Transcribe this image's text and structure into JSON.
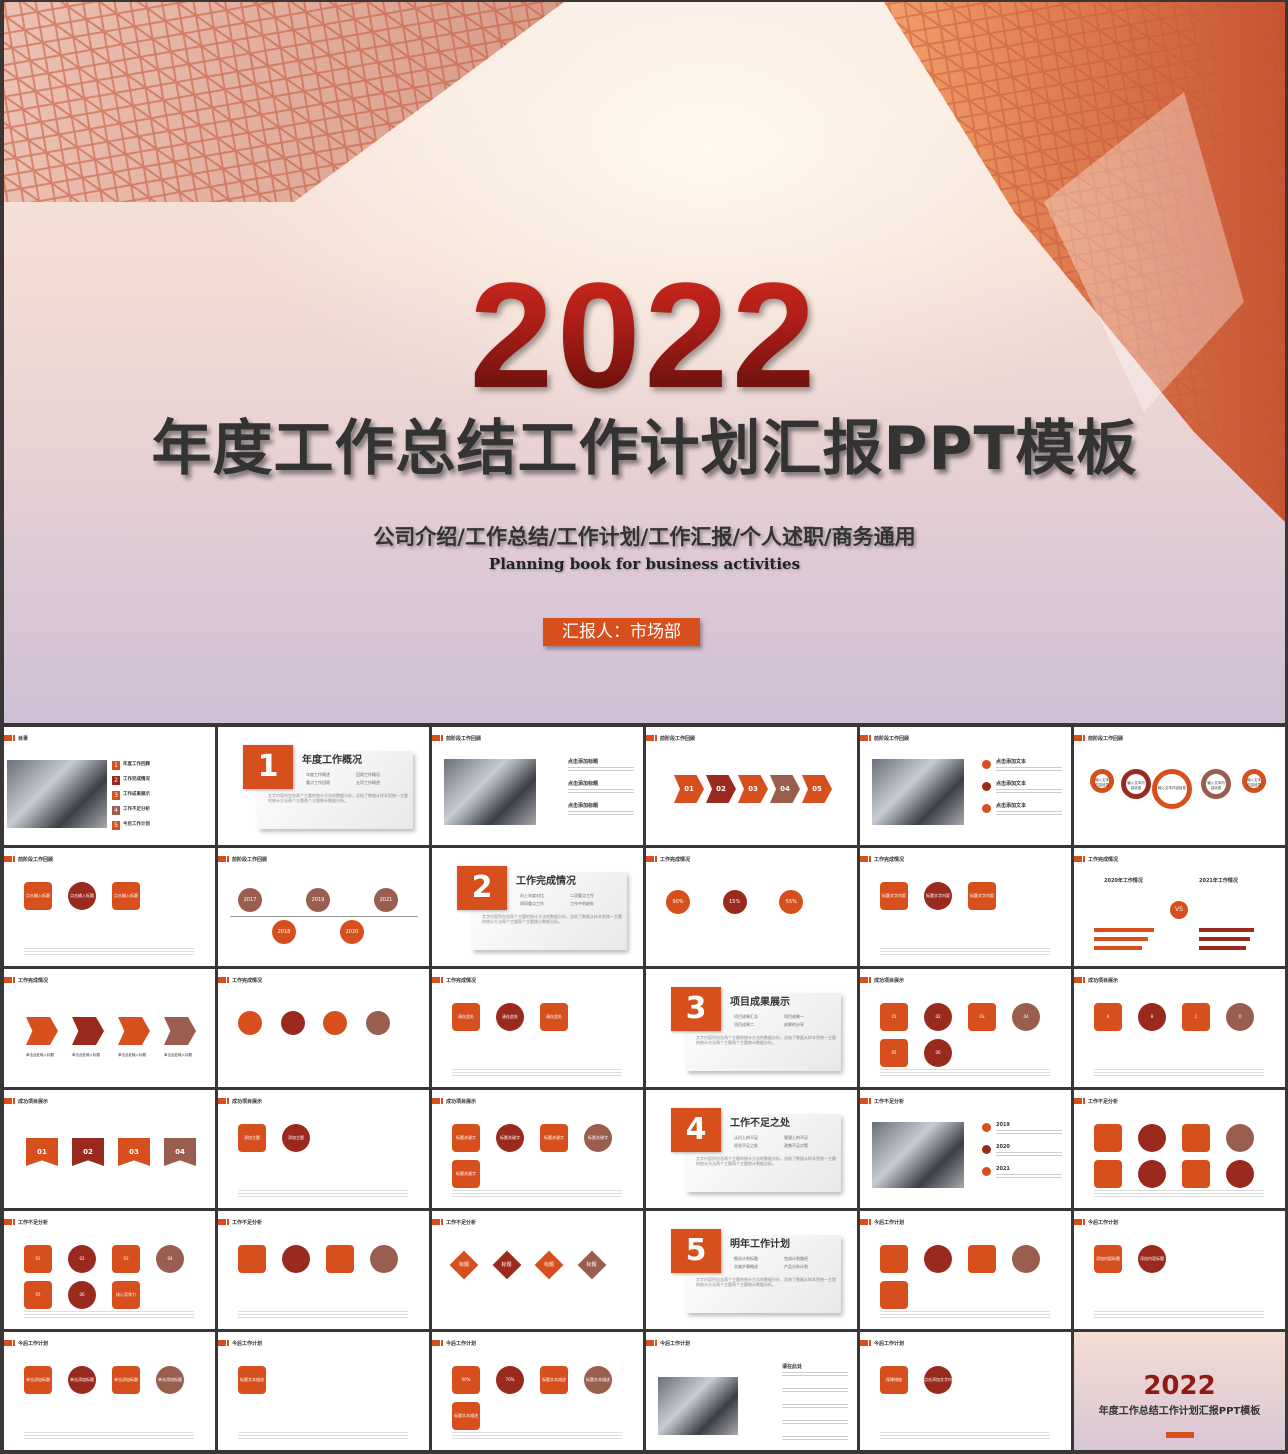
{
  "hero": {
    "year": "2022",
    "title": "年度工作总结工作计划汇报PPT模板",
    "subtitle": "公司介绍/工作总结/工作计划/工作汇报/个人述职/商务通用",
    "subtitle_en": "Planning book for business activities",
    "reporter": "汇报人：市场部"
  },
  "colors": {
    "accent": "#d64f1c",
    "dark_red": "#9b2a1e",
    "brown": "#9a5e4e"
  },
  "body_text": "文字内容所包含两个主题的统计方法的数据分析，总结了数据从样本到统一主题的统计方法两个主题两个主题统计数据分析。",
  "slides": [
    {
      "header": "目录",
      "kind": "toc",
      "items": [
        "年度工作回顾",
        "工作完成情况",
        "工作成果展示",
        "工作不足分析",
        "今后工作计划"
      ]
    },
    {
      "kind": "section",
      "num": "1",
      "title": "年度工作概况",
      "bullets": [
        "年度工作概述",
        "回顾工作概况",
        "重点工作回顾",
        "五项工作概述"
      ]
    },
    {
      "header": "前阶段工作回顾",
      "kind": "photo-text",
      "items": [
        "点击添加标题",
        "点击添加标题",
        "点击添加标题"
      ]
    },
    {
      "header": "前阶段工作回顾",
      "kind": "arrows",
      "items": [
        "01",
        "02",
        "03",
        "04",
        "05"
      ]
    },
    {
      "header": "前阶段工作回顾",
      "kind": "laptop",
      "items": [
        "点击添加文本",
        "点击添加文本",
        "点击添加文本"
      ]
    },
    {
      "header": "前阶段工作回顾",
      "kind": "pins",
      "items": [
        "输入文本内容信息",
        "输入文本内容信息",
        "输入文本内容信息",
        "输入文本内容信息",
        "输入文本内容信息"
      ]
    },
    {
      "header": "前阶段工作回顾",
      "kind": "photos3",
      "items": [
        "点击输入标题",
        "点击输入标题",
        "点击输入标题"
      ]
    },
    {
      "header": "前阶段工作回顾",
      "kind": "timeline",
      "items": [
        "2017",
        "2018",
        "2019",
        "2020",
        "2021"
      ]
    },
    {
      "kind": "section",
      "num": "2",
      "title": "工作完成情况",
      "bullets": [
        "向上年度对比",
        "二项重点工作",
        "四项重点工作",
        "工作中的缺失"
      ]
    },
    {
      "header": "工作完成情况",
      "kind": "percents",
      "items": [
        "90%",
        "15%",
        "55%"
      ]
    },
    {
      "header": "工作完成情况",
      "kind": "scale",
      "items": [
        "标题文字内容",
        "标题文字内容",
        "标题文字内容"
      ]
    },
    {
      "header": "工作完成情况",
      "kind": "vs",
      "items": [
        "2020年工作情况",
        "VS",
        "2021年工作情况"
      ]
    },
    {
      "header": "工作完成情况",
      "kind": "chevrons",
      "items": [
        "单击此处输入标题",
        "单击此处输入标题",
        "单击此处输入标题",
        "单击此处输入标题"
      ]
    },
    {
      "header": "工作完成情况",
      "kind": "drops",
      "items": [
        "",
        "",
        "",
        ""
      ]
    },
    {
      "header": "工作完成情况",
      "kind": "cards",
      "items": [
        "请在此处",
        "请在此处",
        "请在此处"
      ]
    },
    {
      "kind": "section",
      "num": "3",
      "title": "项目成果展示",
      "bullets": [
        "项目成果汇总",
        "项目成果一",
        "项目成果二",
        "成果的分享"
      ]
    },
    {
      "header": "成功项目展示",
      "kind": "ring",
      "items": [
        "01",
        "02",
        "03",
        "04",
        "05",
        "06"
      ]
    },
    {
      "header": "成功项目展示",
      "kind": "waves",
      "items": [
        "A",
        "B",
        "C",
        "D"
      ]
    },
    {
      "header": "成功项目展示",
      "kind": "banners",
      "items": [
        "01",
        "02",
        "03",
        "04"
      ]
    },
    {
      "header": "成功项目展示",
      "kind": "mosaic",
      "items": [
        "添加主题",
        "添加主题"
      ]
    },
    {
      "header": "成功项目展示",
      "kind": "triangles",
      "items": [
        "标题关键字",
        "标题关键字",
        "标题关键字",
        "标题关键字",
        "标题关键字"
      ]
    },
    {
      "kind": "section",
      "num": "4",
      "title": "工作不足之处",
      "bullets": [
        "认识上的不足",
        "管理上的不足",
        "经验不足之处",
        "改善不足对策"
      ]
    },
    {
      "header": "工作不足分析",
      "kind": "photo-years",
      "items": [
        "2019",
        "2020",
        "2021"
      ]
    },
    {
      "header": "工作不足分析",
      "kind": "head",
      "items": [
        "",
        "",
        "",
        "",
        "",
        "",
        "",
        ""
      ]
    },
    {
      "header": "工作不足分析",
      "kind": "hexring",
      "items": [
        "01",
        "02",
        "03",
        "04",
        "05",
        "06",
        "核心竞争力"
      ]
    },
    {
      "header": "工作不足分析",
      "kind": "ribbons",
      "items": [
        "",
        "",
        "",
        ""
      ]
    },
    {
      "header": "工作不足分析",
      "kind": "diamonds",
      "items": [
        "标题",
        "标题",
        "标题",
        "标题"
      ]
    },
    {
      "kind": "section",
      "num": "5",
      "title": "明年工作计划",
      "bullets": [
        "细化计划标题",
        "完成计划路径",
        "实施步骤概述",
        "产品分析计划"
      ]
    },
    {
      "header": "今后工作计划",
      "kind": "rocket",
      "items": [
        "",
        "",
        "",
        "",
        ""
      ]
    },
    {
      "header": "今后工作计划",
      "kind": "stairs",
      "items": [
        "添加内容标题",
        "添加内容标题"
      ]
    },
    {
      "header": "今后工作计划",
      "kind": "rhombus",
      "items": [
        "单击添加标题",
        "单击添加标题",
        "单击添加标题",
        "单击添加标题"
      ]
    },
    {
      "header": "今后工作计划",
      "kind": "bigcircle",
      "items": [
        "标题文本描述"
      ]
    },
    {
      "header": "今后工作计划",
      "kind": "peaks",
      "items": [
        "90%",
        "70%",
        "标题文本描述",
        "标题文本描述",
        "标题文本描述"
      ]
    },
    {
      "header": "今后工作计划",
      "kind": "photo-list",
      "items": [
        "请在此处",
        "",
        "",
        "",
        ""
      ]
    },
    {
      "header": "今后工作计划",
      "kind": "pie",
      "items": [
        "保障措施",
        "点击添加文字内容，点击添加文字内容"
      ]
    },
    {
      "kind": "cover",
      "num": "2022",
      "title": "年度工作总结工作计划汇报PPT模板"
    }
  ]
}
